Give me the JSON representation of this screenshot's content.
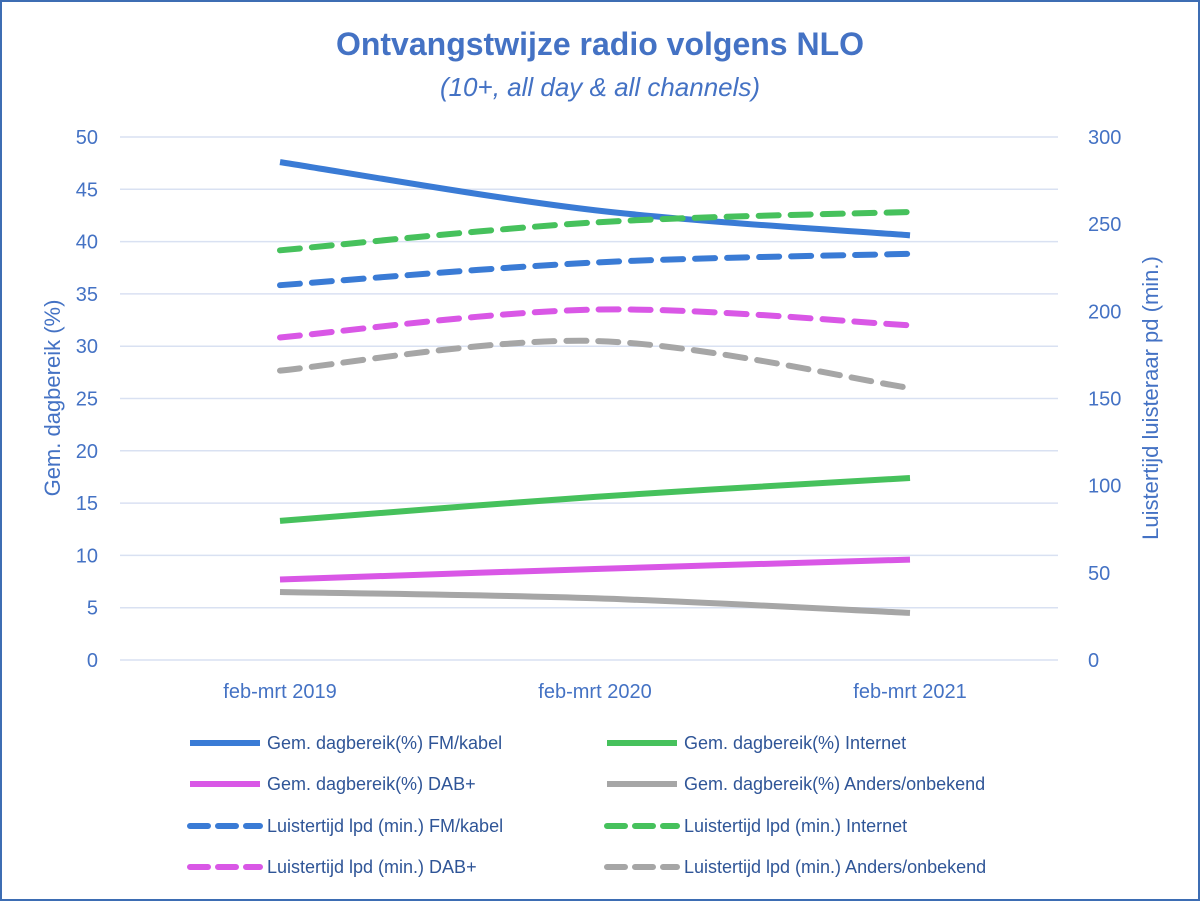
{
  "chart_data": {
    "type": "line",
    "title": "Ontvangstwijze radio volgens NLO",
    "subtitle": "(10+, all day & all channels)",
    "categories": [
      "feb-mrt 2019",
      "feb-mrt 2020",
      "feb-mrt 2021"
    ],
    "y_left": {
      "label": "Gem. dagbereik (%)",
      "range": [
        0,
        50
      ],
      "ticks": [
        0,
        5,
        10,
        15,
        20,
        25,
        30,
        35,
        40,
        45,
        50
      ]
    },
    "y_right": {
      "label": "Luistertijd luisteraar pd (min.)",
      "range": [
        0,
        300
      ],
      "ticks": [
        0,
        50,
        100,
        150,
        200,
        250,
        300
      ]
    },
    "grid": true,
    "legend_position": "bottom",
    "series": [
      {
        "name": "Gem. dagbereik(%) FM/kabel",
        "axis": "left",
        "style": "solid",
        "color": "#3a7bd5",
        "values": [
          47.6,
          43.0,
          40.6
        ]
      },
      {
        "name": "Gem. dagbereik(%) Internet",
        "axis": "left",
        "style": "solid",
        "color": "#46c15c",
        "values": [
          13.3,
          15.6,
          17.4
        ]
      },
      {
        "name": "Gem. dagbereik(%) DAB+",
        "axis": "left",
        "style": "solid",
        "color": "#d957e6",
        "values": [
          7.7,
          8.7,
          9.6
        ]
      },
      {
        "name": "Gem. dagbereik(%) Anders/onbekend",
        "axis": "left",
        "style": "solid",
        "color": "#a6a6a6",
        "values": [
          6.5,
          5.9,
          4.5
        ]
      },
      {
        "name": "Luistertijd lpd (min.) FM/kabel",
        "axis": "right",
        "style": "dashed",
        "color": "#3a7bd5",
        "values": [
          215,
          228,
          233
        ]
      },
      {
        "name": "Luistertijd lpd (min.) Internet",
        "axis": "right",
        "style": "dashed",
        "color": "#46c15c",
        "values": [
          235,
          251,
          257
        ]
      },
      {
        "name": "Luistertijd lpd (min.) DAB+",
        "axis": "right",
        "style": "dashed",
        "color": "#d957e6",
        "values": [
          185,
          201,
          192
        ]
      },
      {
        "name": "Luistertijd lpd (min.) Anders/onbekend",
        "axis": "right",
        "style": "dashed",
        "color": "#a6a6a6",
        "values": [
          166,
          183,
          156
        ]
      }
    ]
  }
}
